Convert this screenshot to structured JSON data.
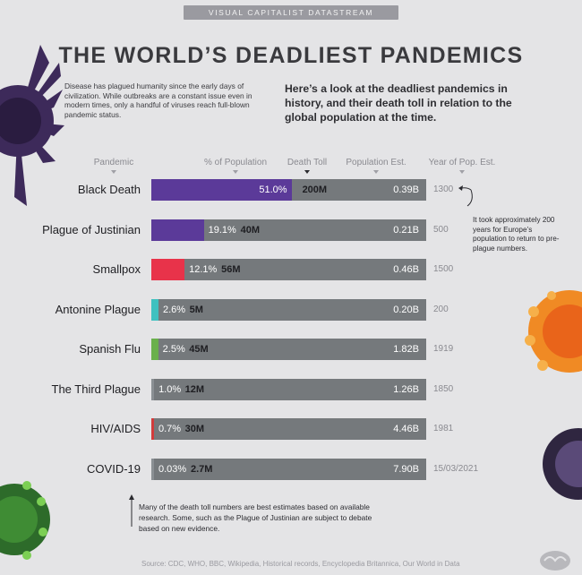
{
  "banner": "VISUAL CAPITALIST DATASTREAM",
  "title": "THE WORLD’S DEADLIEST PANDEMICS",
  "intro_left": "Disease has plagued humanity since the early days of civilization. While outbreaks are a constant issue even in modern times, only a handful of viruses reach full-blown pandemic status.",
  "intro_right": "Here’s a look at the deadliest pandemics in history, and their death toll in relation to the global population at the time.",
  "columns": {
    "pandemic": "Pandemic",
    "pct": "% of Population",
    "toll": "Death Toll",
    "pop": "Population Est.",
    "year": "Year of Pop. Est."
  },
  "side_note": "It took approximately 200 years for Europe’s population to return to pre-plague numbers.",
  "foot_note": "Many of the death toll numbers are best estimates based on available research. Some, such as the Plague of Justinian are subject to debate based on new evidence.",
  "source": "Source: CDC, WHO, BBC, Wikipedia, Historical records, Encyclopedia Britannica, Our World in Data",
  "chart_data": {
    "type": "bar",
    "categories": [
      "Black Death",
      "Plague of Justinian",
      "Smallpox",
      "Antonine Plague",
      "Spanish Flu",
      "The Third Plague",
      "HIV/AIDS",
      "COVID-19"
    ],
    "pct_values": [
      51.0,
      19.1,
      12.1,
      2.6,
      2.5,
      1.0,
      0.7,
      0.03
    ],
    "pct_labels": [
      "51.0%",
      "19.1%",
      "12.1%",
      "2.6%",
      "2.5%",
      "1.0%",
      "0.7%",
      "0.03%"
    ],
    "death_toll_labels": [
      "200M",
      "40M",
      "56M",
      "5M",
      "45M",
      "12M",
      "30M",
      "2.7M"
    ],
    "death_toll_millions": [
      200,
      40,
      56,
      5,
      45,
      12,
      30,
      2.7
    ],
    "population_labels": [
      "0.39B",
      "0.21B",
      "0.46B",
      "0.20B",
      "1.82B",
      "1.26B",
      "4.46B",
      "7.90B"
    ],
    "population_billions": [
      0.39,
      0.21,
      0.46,
      0.2,
      1.82,
      1.26,
      4.46,
      7.9
    ],
    "years": [
      "1300",
      "500",
      "1500",
      "200",
      "1919",
      "1850",
      "1981",
      "15/03/2021"
    ],
    "colors": [
      "#5b3a99",
      "#5b3a99",
      "#e8334a",
      "#3fc1c0",
      "#6ab04c",
      "#8a8f93",
      "#d23c3c",
      "#8a8f93"
    ],
    "track_color": "#75797c",
    "xlim": [
      0,
      100
    ]
  }
}
